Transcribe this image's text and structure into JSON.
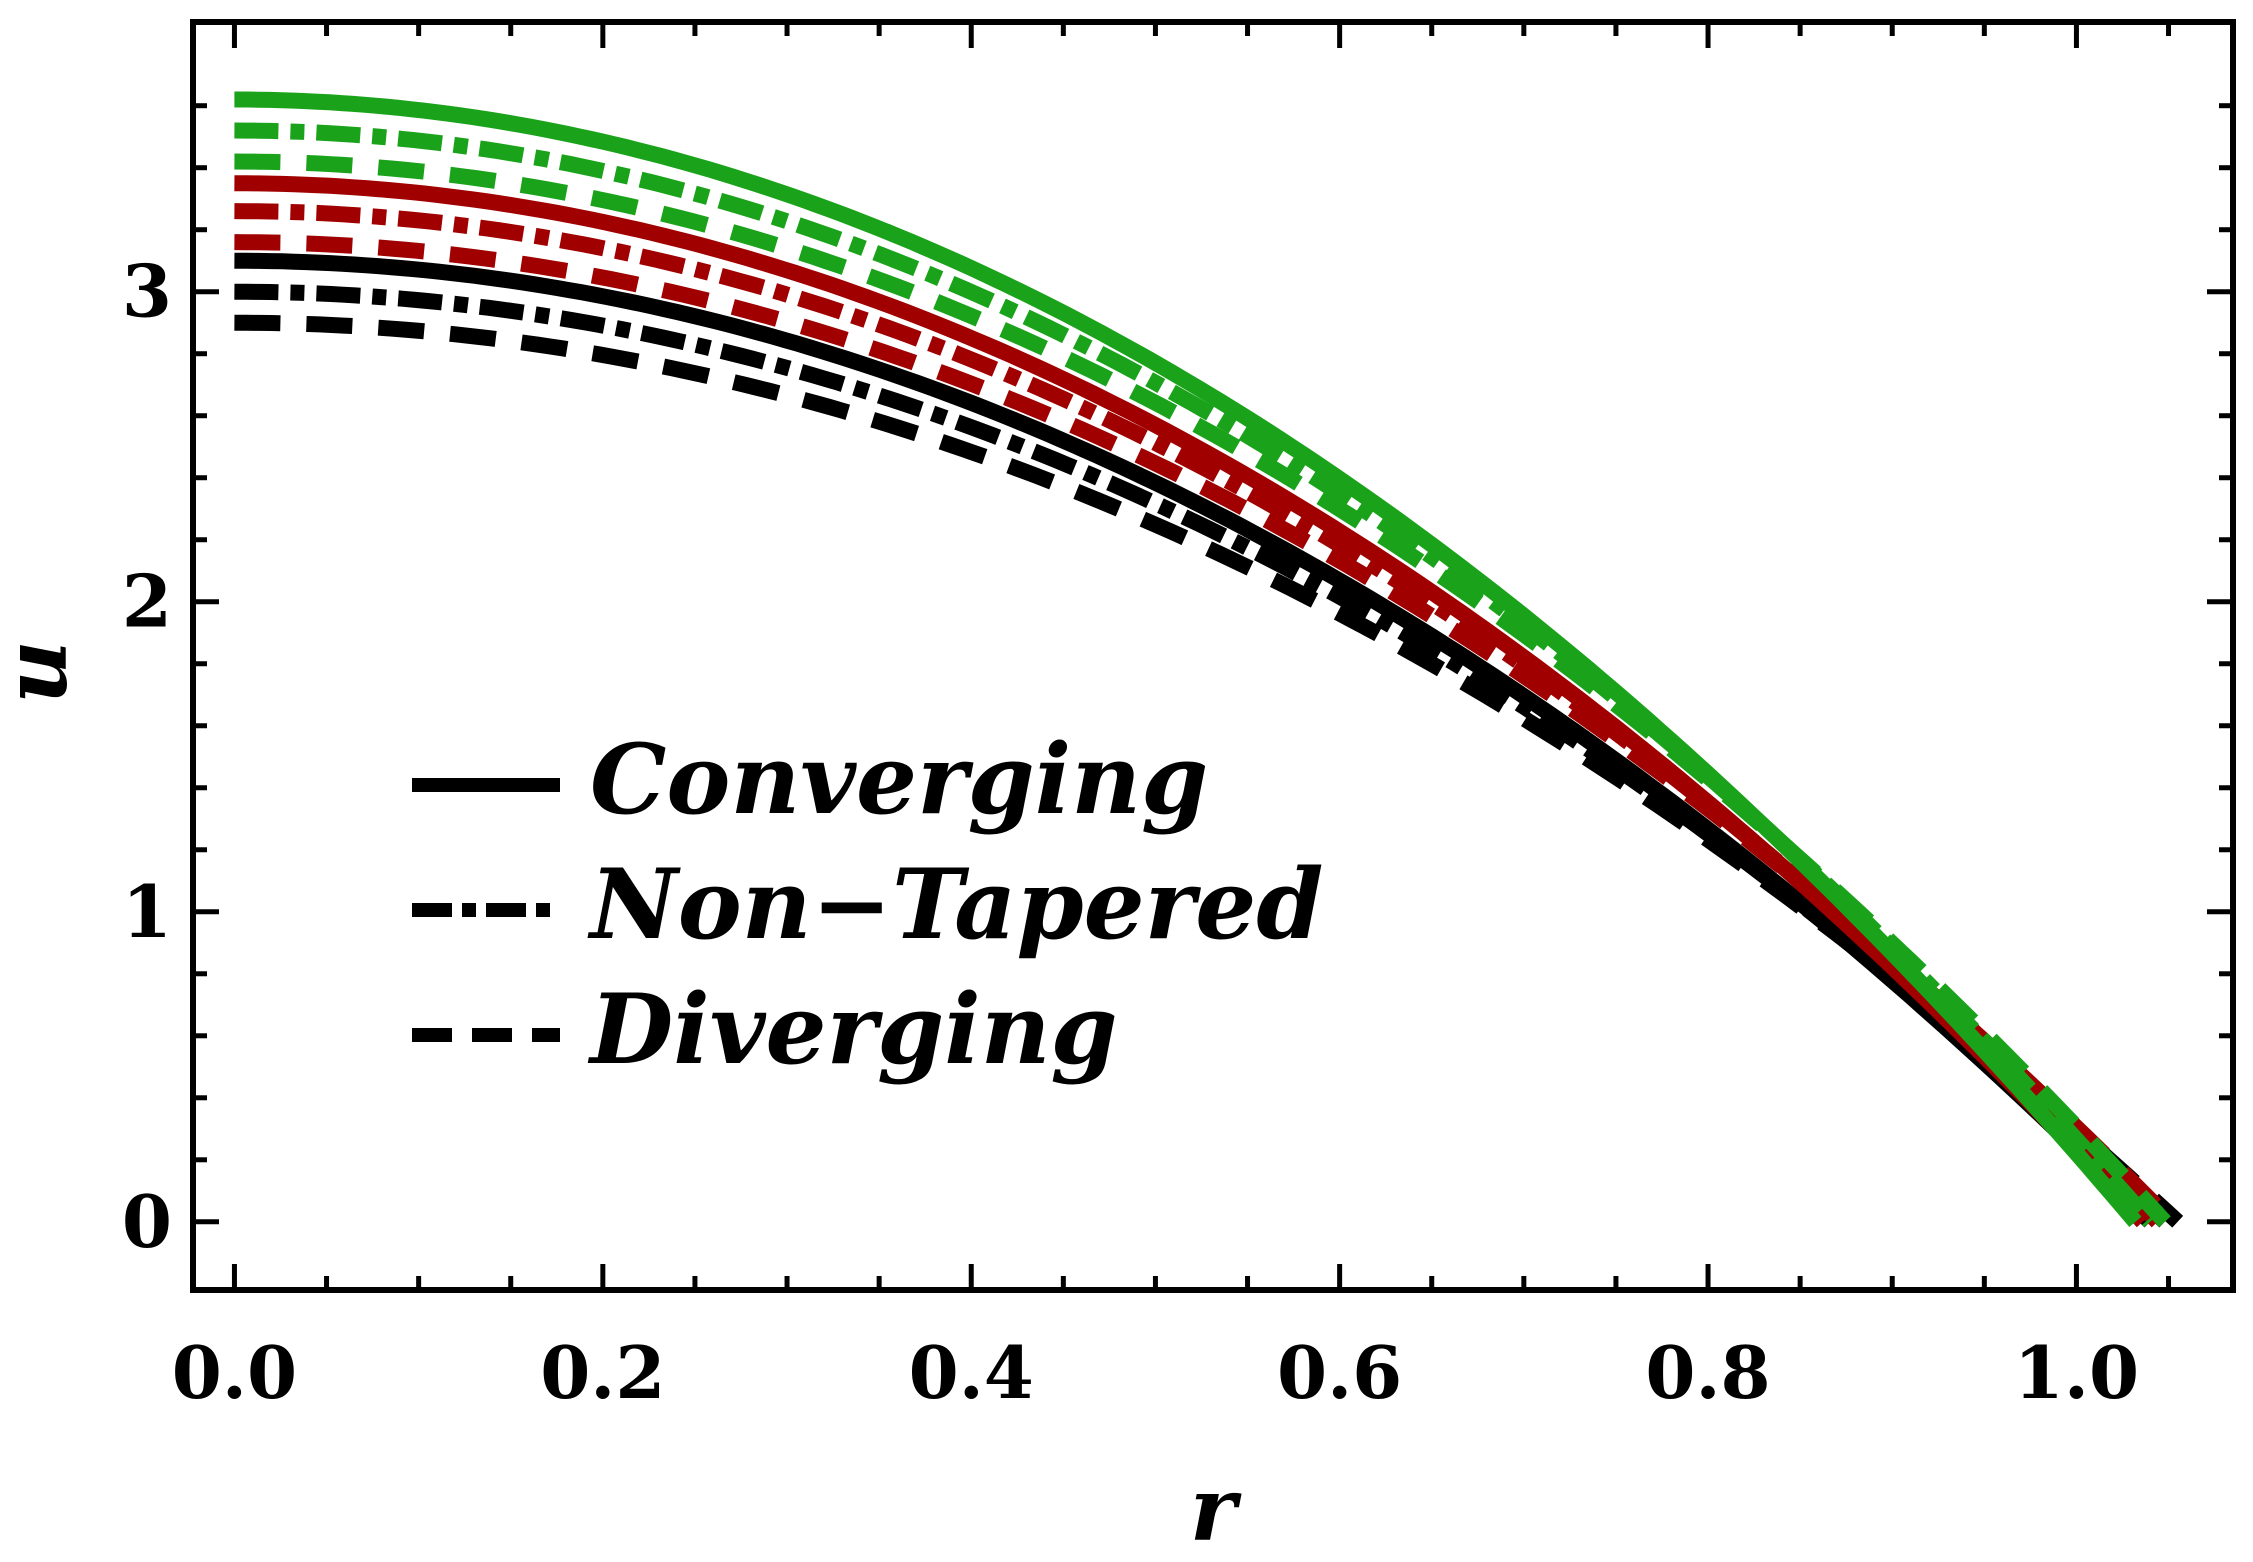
{
  "chart_data": {
    "type": "line",
    "title": "",
    "xlabel": "r",
    "ylabel": "u",
    "xlim": [
      -0.0225,
      1.085
    ],
    "ylim": [
      -0.22,
      3.87
    ],
    "xticks": [
      0.0,
      0.2,
      0.4,
      0.6,
      0.8,
      1.0
    ],
    "xtick_labels": [
      "0.0",
      "0.2",
      "0.4",
      "0.6",
      "0.8",
      "1.0"
    ],
    "yticks": [
      0,
      1,
      2,
      3
    ],
    "ytick_labels": [
      "0",
      "1",
      "2",
      "3"
    ],
    "grid": false,
    "legend_position": "middle-left",
    "legend": [
      {
        "label": "Converging",
        "style": "solid"
      },
      {
        "label": "Non−Tapered",
        "style": "dashdot"
      },
      {
        "label": "Diverging",
        "style": "dashed"
      }
    ],
    "colors": {
      "black": "#000000",
      "red": "#a00000",
      "green": "#1aa31a"
    },
    "series": [
      {
        "name": "black-converging",
        "color": "#000000",
        "style": "solid",
        "u0": 3.1,
        "R": 1.04
      },
      {
        "name": "black-non-tapered",
        "color": "#000000",
        "style": "dashdot",
        "u0": 3.0,
        "R": 1.048
      },
      {
        "name": "black-diverging",
        "color": "#000000",
        "style": "dashed",
        "u0": 2.9,
        "R": 1.055
      },
      {
        "name": "red-converging",
        "color": "#a00000",
        "style": "solid",
        "u0": 3.35,
        "R": 1.036
      },
      {
        "name": "red-non-tapered",
        "color": "#a00000",
        "style": "dashdot",
        "u0": 3.26,
        "R": 1.044
      },
      {
        "name": "red-diverging",
        "color": "#a00000",
        "style": "dashed",
        "u0": 3.16,
        "R": 1.052
      },
      {
        "name": "green-converging",
        "color": "#1aa31a",
        "style": "solid",
        "u0": 3.62,
        "R": 1.032
      },
      {
        "name": "green-non-tapered",
        "color": "#1aa31a",
        "style": "dashdot",
        "u0": 3.52,
        "R": 1.04
      },
      {
        "name": "green-diverging",
        "color": "#1aa31a",
        "style": "dashed",
        "u0": 3.42,
        "R": 1.048
      }
    ]
  }
}
